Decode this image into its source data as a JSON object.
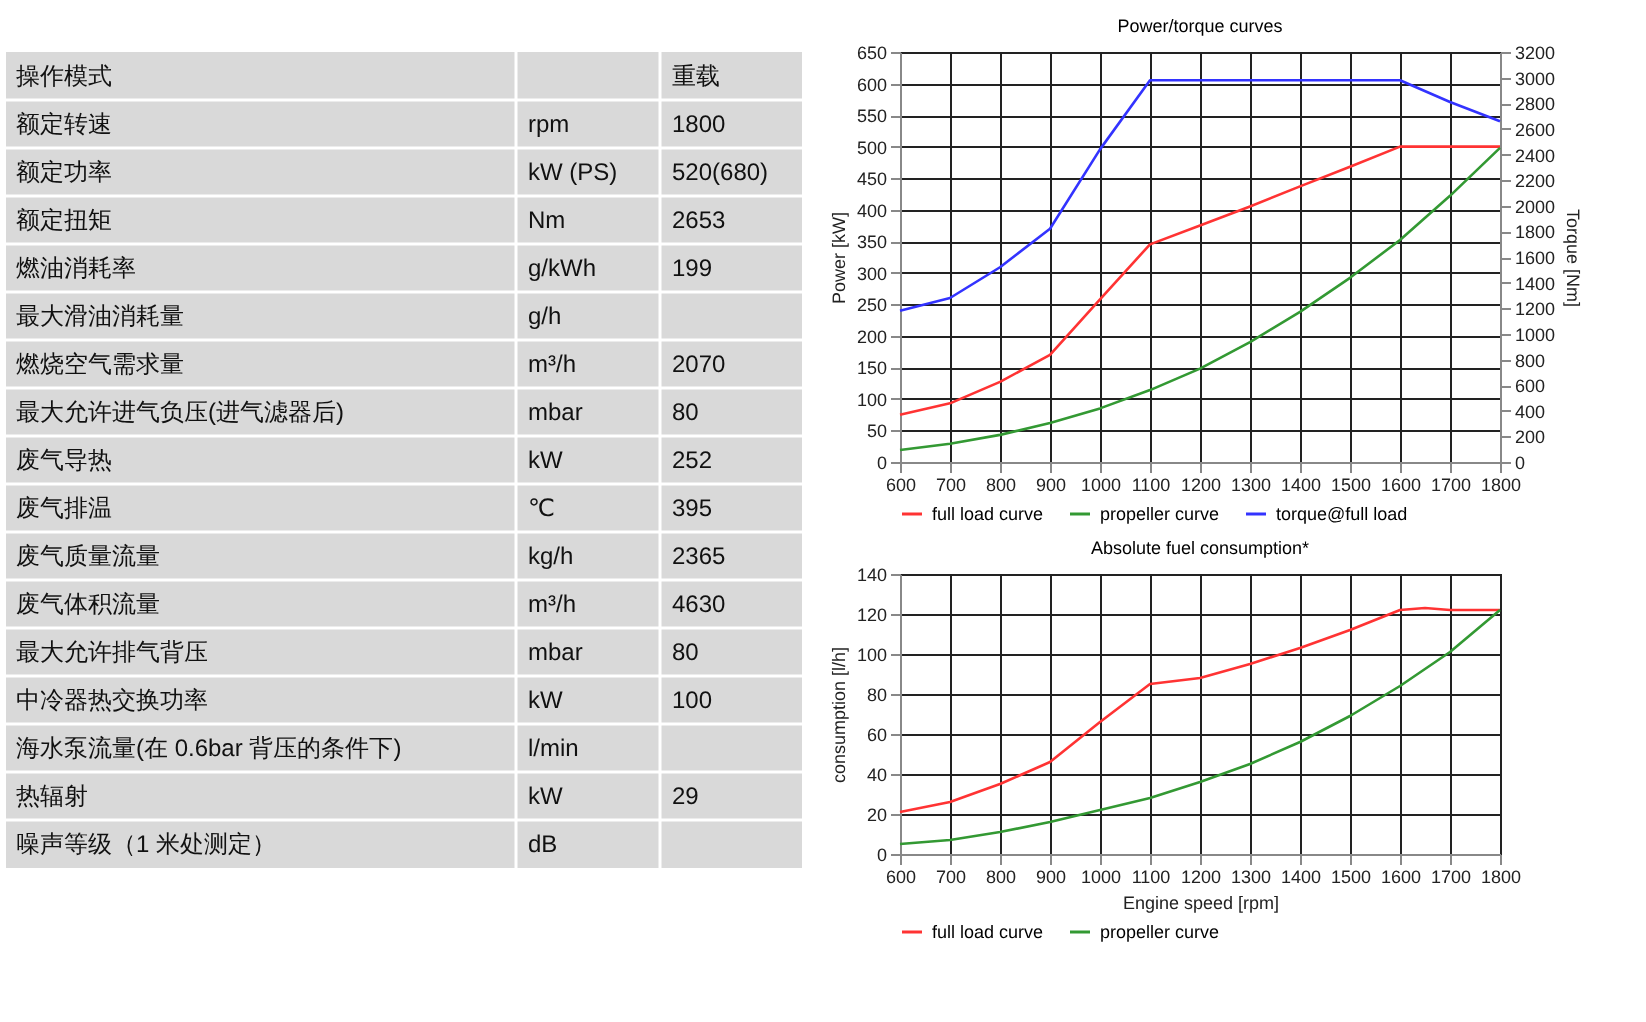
{
  "chart_data": [
    {
      "type": "other",
      "cell_labels": [
        [
          "操作模式",
          null,
          "重载"
        ],
        [
          "额定转速",
          "rpm",
          "1800"
        ],
        [
          "额定功率",
          "kW (PS)",
          "520(680)"
        ],
        [
          "额定扭矩",
          "Nm",
          "2653"
        ],
        [
          "燃油消耗率",
          "g/kWh",
          "199"
        ],
        [
          "最大滑油消耗量",
          "g/h",
          null
        ],
        [
          "燃烧空气需求量",
          "m³/h",
          "2070"
        ],
        [
          "最大允许进气负压(进气滤器后)",
          "mbar",
          "80"
        ],
        [
          "废气导热",
          "kW",
          "252"
        ],
        [
          "废气排温",
          "℃",
          "395"
        ],
        [
          "废气质量流量",
          "kg/h",
          "2365"
        ],
        [
          "废气体积流量",
          "m³/h",
          "4630"
        ],
        [
          "最大允许排气背压",
          "mbar",
          "80"
        ],
        [
          "中冷器热交换功率",
          "kW",
          "100"
        ],
        [
          "海水泵流量(在 0.6bar 背压的条件下)",
          "l/min",
          null
        ],
        [
          "热辐射",
          "kW",
          "29"
        ],
        [
          "噪声等级（1 米处测定）",
          "dB",
          null
        ]
      ]
    },
    {
      "type": "line",
      "title": "Power/torque curves",
      "ylabel": "Power [kW]",
      "y2label": "Torque [Nm]",
      "x": [
        600,
        700,
        800,
        900,
        1000,
        1100,
        1200,
        1300,
        1400,
        1500,
        1600,
        1700,
        1800
      ],
      "xlim": [
        600,
        1800
      ],
      "xticks": [
        600,
        700,
        800,
        900,
        1000,
        1100,
        1200,
        1300,
        1400,
        1500,
        1600,
        1700,
        1800
      ],
      "ylim": [
        0,
        650
      ],
      "yticks": [
        0,
        50,
        100,
        150,
        200,
        250,
        300,
        350,
        400,
        450,
        500,
        550,
        600,
        650
      ],
      "y2lim": [
        0,
        3200
      ],
      "y2ticks": [
        0,
        200,
        400,
        600,
        800,
        1000,
        1200,
        1400,
        1600,
        1800,
        2000,
        2200,
        2400,
        2600,
        2800,
        3000,
        3200
      ],
      "grid": true,
      "legend": "bottom",
      "marker": "none",
      "line_style": "solid",
      "series": [
        {
          "name": "full load curve",
          "color": "#ff3333",
          "values": [
            75,
            93,
            127,
            170,
            258,
            345,
            375,
            405,
            437,
            468,
            500,
            500,
            500
          ]
        },
        {
          "name": "propeller curve",
          "color": "#339933",
          "values": [
            19,
            29,
            43,
            62,
            85,
            114,
            148,
            190,
            238,
            292,
            352,
            422,
            498
          ]
        },
        {
          "name": "torque@full load",
          "color": "#3333ff",
          "axis": "y2",
          "x": [
            600,
            700,
            800,
            900,
            1000,
            1100,
            1600,
            1700,
            1800
          ],
          "values": [
            1180,
            1280,
            1520,
            1820,
            2440,
            2980,
            2980,
            2810,
            2660
          ]
        }
      ]
    },
    {
      "type": "line",
      "title": "Absolute fuel consumption*",
      "xlabel": "Engine speed [rpm]",
      "ylabel": "consumption [l/h]",
      "x": [
        600,
        700,
        800,
        900,
        1000,
        1100,
        1200,
        1300,
        1400,
        1500,
        1600,
        1650,
        1700,
        1800
      ],
      "xlim": [
        600,
        1800
      ],
      "xticks": [
        600,
        700,
        800,
        900,
        1000,
        1100,
        1200,
        1300,
        1400,
        1500,
        1600,
        1700,
        1800
      ],
      "ylim": [
        0,
        140
      ],
      "yticks": [
        0,
        20,
        40,
        60,
        80,
        100,
        120,
        140
      ],
      "grid": true,
      "legend": "bottom",
      "marker": "none",
      "line_style": "solid",
      "series": [
        {
          "name": "full load curve",
          "color": "#ff3333",
          "values": [
            21,
            26,
            35,
            46,
            66,
            85,
            88,
            95,
            103,
            112,
            122,
            123,
            122,
            122
          ]
        },
        {
          "name": "propeller curve",
          "color": "#339933",
          "x": [
            600,
            700,
            800,
            900,
            1000,
            1100,
            1200,
            1300,
            1400,
            1500,
            1600,
            1700,
            1800
          ],
          "values": [
            5,
            7,
            11,
            16,
            22,
            28,
            36,
            45,
            56,
            69,
            84,
            101,
            122
          ]
        }
      ]
    }
  ]
}
